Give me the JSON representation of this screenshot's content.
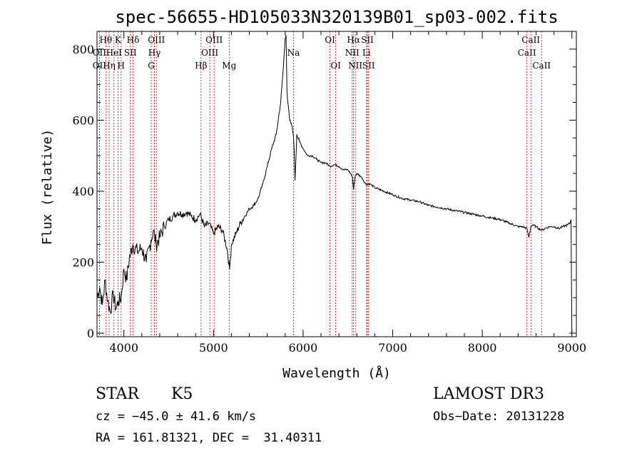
{
  "chart_data": {
    "type": "line",
    "title": "spec-56655-HD105033N320139B01_sp03-002.fits",
    "xlabel": "Wavelength (Å)",
    "ylabel": "Flux (relative)",
    "xlim": [
      3700,
      9050
    ],
    "ylim": [
      -10,
      850
    ],
    "x_ticks": [
      4000,
      5000,
      6000,
      7000,
      8000,
      9000
    ],
    "y_ticks": [
      0,
      200,
      400,
      600,
      800
    ],
    "series": [
      {
        "name": "flux",
        "x": [
          3700,
          3730,
          3760,
          3790,
          3820,
          3850,
          3880,
          3910,
          3940,
          3970,
          4000,
          4030,
          4060,
          4100,
          4150,
          4200,
          4250,
          4300,
          4330,
          4360,
          4400,
          4450,
          4500,
          4550,
          4600,
          4650,
          4700,
          4750,
          4800,
          4850,
          4900,
          4950,
          5000,
          5050,
          5100,
          5150,
          5180,
          5200,
          5250,
          5300,
          5350,
          5400,
          5450,
          5500,
          5550,
          5600,
          5650,
          5700,
          5750,
          5780,
          5800,
          5810,
          5820,
          5830,
          5850,
          5880,
          5890,
          5900,
          5910,
          5930,
          5960,
          6000,
          6050,
          6100,
          6150,
          6200,
          6250,
          6300,
          6350,
          6400,
          6450,
          6500,
          6530,
          6550,
          6563,
          6580,
          6600,
          6650,
          6700,
          6750,
          6800,
          6900,
          7000,
          7100,
          7200,
          7300,
          7400,
          7500,
          7600,
          7700,
          7800,
          7900,
          8000,
          8100,
          8200,
          8300,
          8400,
          8450,
          8498,
          8520,
          8542,
          8560,
          8600,
          8662,
          8700,
          8750,
          8800,
          8850,
          8900,
          8950,
          8980,
          8990,
          9000
        ],
        "y": [
          100,
          130,
          80,
          150,
          90,
          60,
          110,
          70,
          90,
          100,
          180,
          150,
          210,
          250,
          230,
          240,
          200,
          260,
          290,
          250,
          270,
          300,
          320,
          330,
          340,
          335,
          340,
          330,
          320,
          335,
          300,
          310,
          280,
          300,
          290,
          240,
          180,
          250,
          280,
          310,
          330,
          350,
          360,
          380,
          420,
          470,
          520,
          560,
          650,
          750,
          830,
          840,
          680,
          650,
          600,
          580,
          560,
          520,
          430,
          560,
          540,
          520,
          500,
          500,
          490,
          480,
          480,
          470,
          475,
          470,
          460,
          460,
          450,
          440,
          405,
          440,
          450,
          440,
          420,
          420,
          410,
          400,
          390,
          380,
          375,
          370,
          360,
          355,
          350,
          345,
          340,
          335,
          330,
          325,
          320,
          310,
          300,
          300,
          295,
          270,
          300,
          305,
          300,
          290,
          295,
          300,
          300,
          295,
          300,
          305,
          310,
          320,
          0
        ]
      }
    ],
    "emission_lines": [
      {
        "label": "Hθ",
        "wavelength": 3798,
        "row": 1
      },
      {
        "label": "OII",
        "wavelength": 3727,
        "row": 2
      },
      {
        "label": "OII",
        "wavelength": 3727,
        "row": 3
      },
      {
        "label": "HeI",
        "wavelength": 3889,
        "row": 2
      },
      {
        "label": "Hη",
        "wavelength": 3835,
        "row": 3
      },
      {
        "label": "K",
        "wavelength": 3934,
        "row": 1
      },
      {
        "label": "SII",
        "wavelength": 4072,
        "row": 2
      },
      {
        "label": "H",
        "wavelength": 3969,
        "row": 3
      },
      {
        "label": "Hδ",
        "wavelength": 4102,
        "row": 1
      },
      {
        "label": "OIII",
        "wavelength": 4363,
        "row": 1
      },
      {
        "label": "Hγ",
        "wavelength": 4341,
        "row": 2
      },
      {
        "label": "G",
        "wavelength": 4305,
        "row": 3
      },
      {
        "label": "OIII",
        "wavelength": 5007,
        "row": 1
      },
      {
        "label": "OIII",
        "wavelength": 4959,
        "row": 2
      },
      {
        "label": "Hβ",
        "wavelength": 4861,
        "row": 3
      },
      {
        "label": "Mg",
        "wavelength": 5175,
        "row": 3
      },
      {
        "label": "Na",
        "wavelength": 5893,
        "row": 2
      },
      {
        "label": "OI",
        "wavelength": 6300,
        "row": 1
      },
      {
        "label": "OI",
        "wavelength": 6364,
        "row": 3
      },
      {
        "label": "Hα",
        "wavelength": 6563,
        "row": 1
      },
      {
        "label": "NII",
        "wavelength": 6548,
        "row": 2
      },
      {
        "label": "NII",
        "wavelength": 6583,
        "row": 3
      },
      {
        "label": "SII",
        "wavelength": 6717,
        "row": 1
      },
      {
        "label": "Li",
        "wavelength": 6708,
        "row": 2
      },
      {
        "label": "SII",
        "wavelength": 6731,
        "row": 3
      },
      {
        "label": "CaII",
        "wavelength": 8542,
        "row": 1
      },
      {
        "label": "CaII",
        "wavelength": 8498,
        "row": 2
      },
      {
        "label": "CaII",
        "wavelength": 8662,
        "row": 3
      }
    ],
    "line_color": "#000000",
    "marker_color": "#cc0000"
  },
  "info": {
    "classification": "STAR",
    "subclass": "K5",
    "survey": "LAMOST DR3",
    "cz": "cz = −45.0 ± 41.6 km/s",
    "obs_date": "Obs−Date: 20131228",
    "coords": "RA = 161.81321, DEC =  31.40311"
  }
}
